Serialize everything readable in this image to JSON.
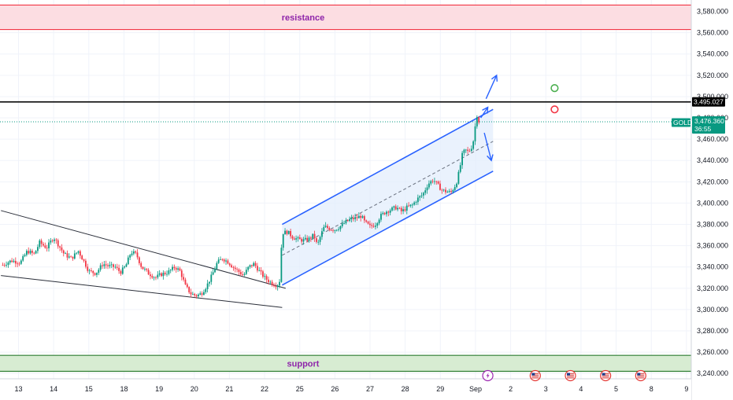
{
  "chart_data": {
    "type": "candlestick",
    "symbol": "GOLD",
    "last_price": "3,476.360",
    "countdown": "36:55",
    "level_label": "3,495.027",
    "level_value": 3495.027,
    "ylim": [
      3235,
      3590
    ],
    "y_ticks": [
      {
        "v": 3580,
        "label": "3,580.000"
      },
      {
        "v": 3560,
        "label": "3,560.000"
      },
      {
        "v": 3540,
        "label": "3,540.000"
      },
      {
        "v": 3520,
        "label": "3,520.000"
      },
      {
        "v": 3500,
        "label": "3,500.000"
      },
      {
        "v": 3480,
        "label": "3,480.000"
      },
      {
        "v": 3460,
        "label": "3,460.000"
      },
      {
        "v": 3440,
        "label": "3,440.000"
      },
      {
        "v": 3420,
        "label": "3,420.000"
      },
      {
        "v": 3400,
        "label": "3,400.000"
      },
      {
        "v": 3380,
        "label": "3,380.000"
      },
      {
        "v": 3360,
        "label": "3,360.000"
      },
      {
        "v": 3340,
        "label": "3,340.000"
      },
      {
        "v": 3320,
        "label": "3,320.000"
      },
      {
        "v": 3300,
        "label": "3,300.000"
      },
      {
        "v": 3280,
        "label": "3,280.000"
      },
      {
        "v": 3260,
        "label": "3,260.000"
      },
      {
        "v": 3240,
        "label": "3,240.000"
      }
    ],
    "x_ticks": [
      {
        "slot": 0,
        "label": "13"
      },
      {
        "slot": 1,
        "label": "14"
      },
      {
        "slot": 2,
        "label": "15"
      },
      {
        "slot": 3,
        "label": "18"
      },
      {
        "slot": 4,
        "label": "19"
      },
      {
        "slot": 5,
        "label": "20"
      },
      {
        "slot": 6,
        "label": "21"
      },
      {
        "slot": 7,
        "label": "22"
      },
      {
        "slot": 8,
        "label": "25"
      },
      {
        "slot": 9,
        "label": "26"
      },
      {
        "slot": 10,
        "label": "27"
      },
      {
        "slot": 11,
        "label": "28"
      },
      {
        "slot": 12,
        "label": "29"
      },
      {
        "slot": 13,
        "label": "Sep"
      },
      {
        "slot": 14,
        "label": "2"
      },
      {
        "slot": 15,
        "label": "3"
      },
      {
        "slot": 16,
        "label": "4"
      },
      {
        "slot": 17,
        "label": "5"
      },
      {
        "slot": 18,
        "label": "8"
      },
      {
        "slot": 19,
        "label": "9"
      }
    ],
    "zones": [
      {
        "name": "resistance",
        "from": 3563,
        "to": 3586,
        "fill": "#fcdde2",
        "border": "#f23645"
      },
      {
        "name": "support",
        "from": 3242,
        "to": 3257,
        "fill": "#d7ecd2",
        "border": "#2e7d32"
      }
    ],
    "close_path": [
      [
        -0.45,
        3342
      ],
      [
        -0.2,
        3346
      ],
      [
        0.05,
        3344
      ],
      [
        0.25,
        3355
      ],
      [
        0.45,
        3352
      ],
      [
        0.6,
        3363
      ],
      [
        0.8,
        3358
      ],
      [
        1.0,
        3368
      ],
      [
        1.15,
        3360
      ],
      [
        1.3,
        3352
      ],
      [
        1.5,
        3348
      ],
      [
        1.7,
        3355
      ],
      [
        1.85,
        3346
      ],
      [
        2.0,
        3336
      ],
      [
        2.2,
        3334
      ],
      [
        2.4,
        3343
      ],
      [
        2.55,
        3341
      ],
      [
        2.75,
        3340
      ],
      [
        2.9,
        3335
      ],
      [
        3.05,
        3341
      ],
      [
        3.2,
        3354
      ],
      [
        3.35,
        3352
      ],
      [
        3.5,
        3340
      ],
      [
        3.7,
        3334
      ],
      [
        3.9,
        3330
      ],
      [
        4.05,
        3333
      ],
      [
        4.25,
        3335
      ],
      [
        4.45,
        3340
      ],
      [
        4.6,
        3336
      ],
      [
        4.75,
        3322
      ],
      [
        4.9,
        3315
      ],
      [
        5.05,
        3313
      ],
      [
        5.2,
        3315
      ],
      [
        5.35,
        3322
      ],
      [
        5.5,
        3332
      ],
      [
        5.65,
        3344
      ],
      [
        5.8,
        3348
      ],
      [
        5.95,
        3345
      ],
      [
        6.1,
        3340
      ],
      [
        6.25,
        3336
      ],
      [
        6.4,
        3332
      ],
      [
        6.55,
        3340
      ],
      [
        6.7,
        3343
      ],
      [
        6.85,
        3336
      ],
      [
        7.0,
        3330
      ],
      [
        7.15,
        3326
      ],
      [
        7.3,
        3323
      ],
      [
        7.42,
        3324
      ],
      [
        7.5,
        3372
      ],
      [
        7.65,
        3373
      ],
      [
        7.8,
        3368
      ],
      [
        7.95,
        3366
      ],
      [
        8.1,
        3365
      ],
      [
        8.25,
        3366
      ],
      [
        8.4,
        3370
      ],
      [
        8.5,
        3360
      ],
      [
        8.6,
        3370
      ],
      [
        8.7,
        3378
      ],
      [
        8.85,
        3376
      ],
      [
        9.0,
        3375
      ],
      [
        9.15,
        3378
      ],
      [
        9.3,
        3382
      ],
      [
        9.45,
        3385
      ],
      [
        9.6,
        3386
      ],
      [
        9.75,
        3388
      ],
      [
        9.85,
        3382
      ],
      [
        10.0,
        3378
      ],
      [
        10.15,
        3380
      ],
      [
        10.3,
        3388
      ],
      [
        10.45,
        3392
      ],
      [
        10.6,
        3394
      ],
      [
        10.75,
        3396
      ],
      [
        10.9,
        3392
      ],
      [
        11.05,
        3396
      ],
      [
        11.2,
        3398
      ],
      [
        11.35,
        3404
      ],
      [
        11.5,
        3408
      ],
      [
        11.65,
        3418
      ],
      [
        11.8,
        3422
      ],
      [
        11.95,
        3416
      ],
      [
        12.05,
        3412
      ],
      [
        12.15,
        3411
      ],
      [
        12.3,
        3410
      ],
      [
        12.45,
        3418
      ],
      [
        12.55,
        3432
      ],
      [
        12.62,
        3445
      ],
      [
        12.7,
        3450
      ],
      [
        12.8,
        3448
      ],
      [
        12.88,
        3452
      ],
      [
        12.95,
        3460
      ],
      [
        13.0,
        3475
      ],
      [
        13.05,
        3484
      ],
      [
        13.1,
        3476
      ]
    ],
    "channel": {
      "upper": [
        [
          7.5,
          3380
        ],
        [
          13.5,
          3488
        ]
      ],
      "lower": [
        [
          7.5,
          3323
        ],
        [
          13.5,
          3430
        ]
      ],
      "mid": [
        [
          7.5,
          3351
        ],
        [
          13.5,
          3458
        ]
      ]
    },
    "wedge": {
      "upper": [
        [
          -0.5,
          3393
        ],
        [
          7.6,
          3320
        ]
      ],
      "lower": [
        [
          -0.5,
          3332
        ],
        [
          7.5,
          3302
        ]
      ]
    },
    "arrows": [
      {
        "from": [
          13.3,
          3498
        ],
        "to": [
          13.6,
          3520
        ]
      },
      {
        "from": [
          13.15,
          3480
        ],
        "to": [
          13.35,
          3490
        ]
      },
      {
        "from": [
          13.25,
          3466
        ],
        "to": [
          13.45,
          3440
        ]
      }
    ],
    "circles": [
      {
        "slot": 15.25,
        "y": 3508,
        "color": "#4caf50"
      },
      {
        "slot": 15.25,
        "y": 3488,
        "color": "#f23645"
      }
    ],
    "event_icons": [
      {
        "slot": 13.35,
        "kind": "lightning-icon"
      },
      {
        "slot": 14.7,
        "kind": "us-flag-icon"
      },
      {
        "slot": 15.7,
        "kind": "us-flag-icon"
      },
      {
        "slot": 16.7,
        "kind": "us-flag-icon"
      },
      {
        "slot": 17.7,
        "kind": "us-flag-icon"
      }
    ],
    "colors": {
      "up": "#089981",
      "down": "#f23645",
      "channel": "#2962ff",
      "channel_fill": "#e3edfc",
      "level": "#000000",
      "last_price": "#089981"
    }
  }
}
